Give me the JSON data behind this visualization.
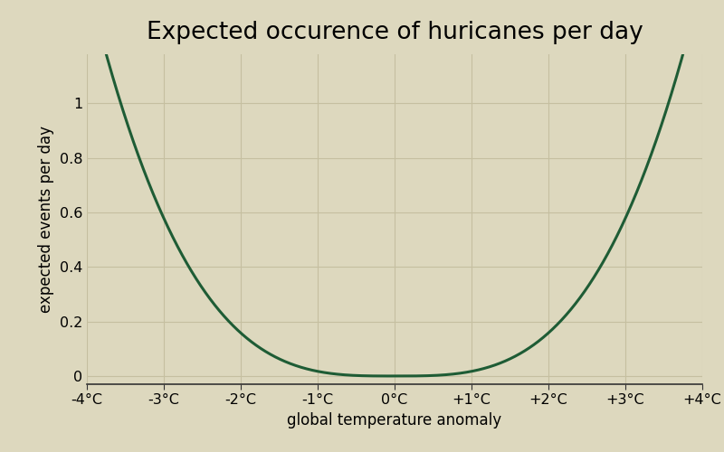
{
  "title": "Expected occurence of huricanes per day",
  "xlabel": "global temperature anomaly",
  "ylabel": "expected events per day",
  "background_color": "#DDD8BE",
  "line_color": "#1E5C35",
  "line_width": 2.2,
  "x_ticks": [
    -4,
    -3,
    -2,
    -1,
    0,
    1,
    2,
    3,
    4
  ],
  "x_tick_labels": [
    "-4°C",
    "-3°C",
    "-2°C",
    "-1°C",
    "0°C",
    "+1°C",
    "+2°C",
    "+3°C",
    "+4°C"
  ],
  "y_ticks": [
    0,
    0.2,
    0.4,
    0.6,
    0.8,
    1
  ],
  "y_tick_labels": [
    "0",
    "0.2",
    "0.4",
    "0.6",
    "0.8",
    "1"
  ],
  "xlim": [
    -4.0,
    4.0
  ],
  "ylim": [
    -0.03,
    1.18
  ],
  "title_fontsize": 19,
  "axis_label_fontsize": 12,
  "tick_fontsize": 11.5,
  "grid_color": "#C5BFA0",
  "exponent": 3.2,
  "scale": 0.0172
}
